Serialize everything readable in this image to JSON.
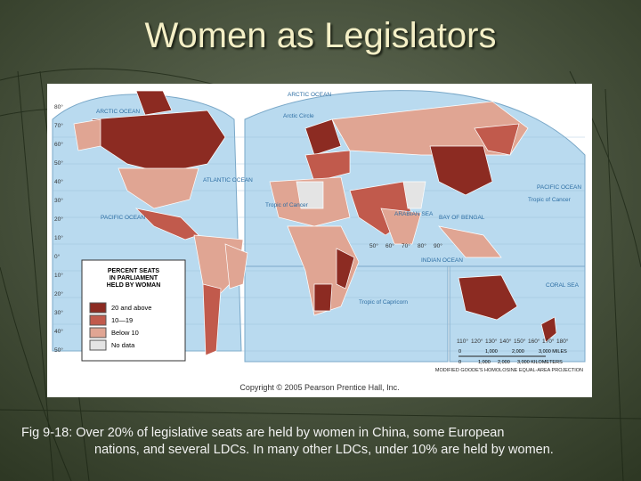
{
  "title": "Women as Legislators",
  "map": {
    "labels": [
      "ARCTIC OCEAN",
      "ARCTIC OCEAN",
      "Arctic Circle",
      "ATLANTIC OCEAN",
      "PACIFIC OCEAN",
      "PACIFIC OCEAN",
      "Tropic of Cancer",
      "Tropic of Cancer",
      "ARABIAN SEA",
      "BAY OF BENGAL",
      "INDIAN OCEAN",
      "Tropic of Capricorn",
      "CORAL SEA"
    ],
    "latitudes": [
      "80°",
      "70°",
      "60°",
      "50°",
      "40°",
      "30°",
      "20°",
      "10°",
      "0°",
      "10°",
      "20°",
      "30°",
      "40°",
      "50°"
    ],
    "longitudes": [
      "50°",
      "60°",
      "70°",
      "80°",
      "90°",
      "110°",
      "120°",
      "130°",
      "140°",
      "150°",
      "160°",
      "170°",
      "180°"
    ],
    "legend": {
      "title": [
        "PERCENT SEATS",
        "IN PARLIAMENT",
        "HELD BY WOMAN"
      ],
      "items": [
        {
          "label": "20 and above",
          "color": "#8c2b22"
        },
        {
          "label": "10—19",
          "color": "#c15a4c"
        },
        {
          "label": "Below 10",
          "color": "#e0a593"
        },
        {
          "label": "No data",
          "color": "#e4e4e4"
        }
      ]
    },
    "scale": {
      "miles": [
        "0",
        "1,000",
        "2,000",
        "3,000 MILES"
      ],
      "km": [
        "0",
        "1,000",
        "2,000",
        "3,000 KILOMETERS"
      ]
    },
    "projection": "MODIFIED GOODE'S HOMOLOSINE EQUAL-AREA PROJECTION",
    "copyright": "Copyright © 2005 Pearson Prentice Hall, Inc."
  },
  "caption": [
    "Fig 9-18: Over 20% of legislative seats are held by women in China, some European",
    "nations, and several LDCs. In many other LDCs, under 10% are held by women."
  ]
}
